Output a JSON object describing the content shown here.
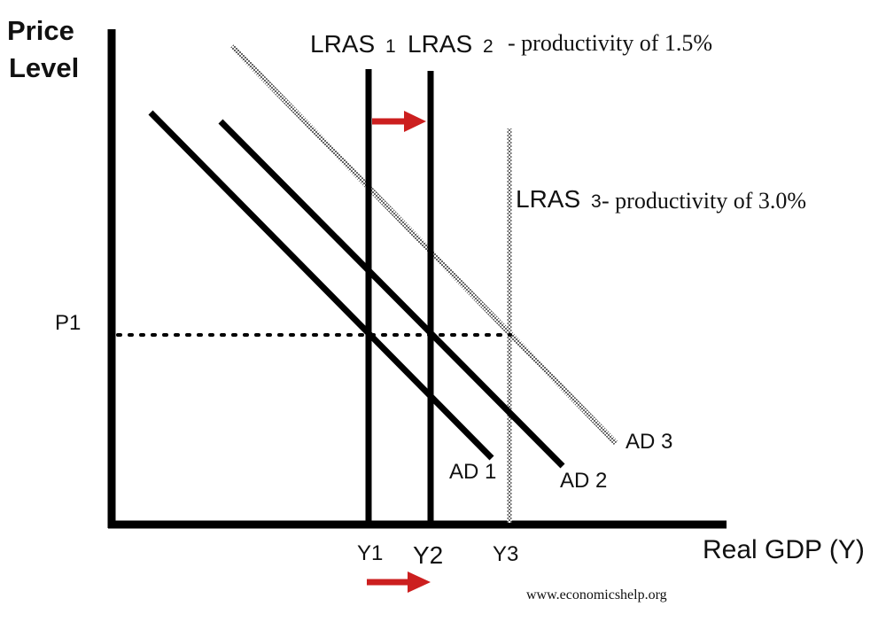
{
  "axes": {
    "y_label_line1": "Price",
    "y_label_line2": "Level",
    "x_label": "Real GDP (Y)"
  },
  "price_levels": {
    "p1": "P1"
  },
  "output_levels": {
    "y1": "Y1",
    "y2": "Y2",
    "y3": "Y3"
  },
  "curves": {
    "lras1": {
      "label": "LRAS",
      "subscript": "1"
    },
    "lras2": {
      "label": "LRAS",
      "subscript": "2",
      "note": "- productivity of 1.5%"
    },
    "lras3": {
      "label": "LRAS",
      "subscript": "3",
      "note": "- productivity of 3.0%"
    },
    "ad1": "AD 1",
    "ad2": "AD 2",
    "ad3": "AD 3"
  },
  "colors": {
    "arrow": "#cc1f1f",
    "line": "#000000",
    "hatched": "#888888"
  },
  "source": "www.economicshelp.org"
}
